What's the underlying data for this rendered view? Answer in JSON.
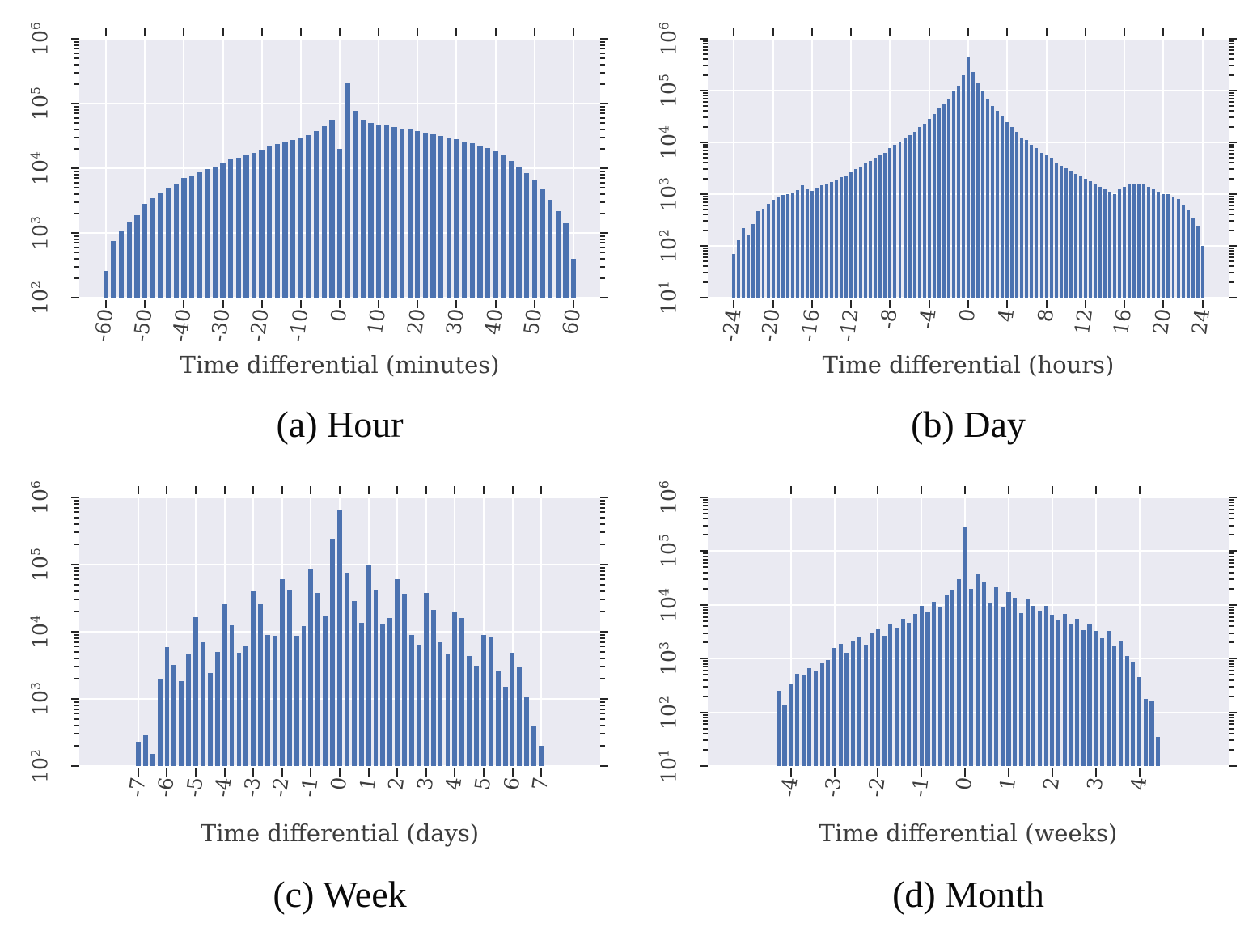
{
  "figure": {
    "background": "#ffffff",
    "bar_color": "#4C72B0",
    "plot_background": "#EAEAF2",
    "grid_color": "#ffffff",
    "tick_color": "#262626",
    "text_color": "#3d3d3d",
    "caption_color": "#0a0a0a"
  },
  "chart_data": [
    {
      "type": "bar",
      "id": "hour",
      "caption": "(a) Hour",
      "xlabel": "Time differential (minutes)",
      "y_scale": "log",
      "y_log_range": [
        2,
        6
      ],
      "x_start": -60,
      "x_step": 2,
      "xticks": [
        -60,
        -50,
        -40,
        -30,
        -20,
        -10,
        0,
        10,
        20,
        30,
        40,
        50,
        60
      ],
      "values": [
        260,
        750,
        1100,
        1500,
        1900,
        2800,
        3400,
        4200,
        4900,
        5700,
        7000,
        7800,
        8600,
        9700,
        10500,
        12300,
        13600,
        14600,
        15800,
        17500,
        19400,
        21500,
        23400,
        25000,
        27000,
        29500,
        33000,
        38000,
        45000,
        56000,
        20000,
        210000,
        78000,
        56000,
        50000,
        48000,
        45500,
        43500,
        41500,
        39500,
        37500,
        35500,
        33500,
        31500,
        29500,
        28000,
        26000,
        24500,
        22500,
        20500,
        18500,
        16000,
        13000,
        10500,
        8300,
        6500,
        4800,
        3300,
        2200,
        1400,
        400
      ]
    },
    {
      "type": "bar",
      "id": "day",
      "caption": "(b) Day",
      "xlabel": "Time differential (hours)",
      "y_scale": "log",
      "y_log_range": [
        1,
        6
      ],
      "x_start": -24,
      "x_step": 0.5,
      "xticks": [
        -24,
        -20,
        -16,
        -12,
        -8,
        -4,
        0,
        4,
        8,
        12,
        16,
        20,
        24
      ],
      "values": [
        70,
        130,
        220,
        165,
        260,
        470,
        530,
        650,
        780,
        860,
        950,
        1000,
        1050,
        1200,
        1480,
        1250,
        1150,
        1300,
        1500,
        1550,
        1700,
        1900,
        2100,
        2300,
        2600,
        3000,
        3400,
        3900,
        4400,
        5000,
        5600,
        6300,
        7900,
        8900,
        10000,
        12500,
        14000,
        16000,
        20000,
        22500,
        28000,
        35000,
        45000,
        56000,
        71000,
        100000,
        126000,
        200000,
        450000,
        225000,
        140000,
        100000,
        71000,
        50000,
        40000,
        32000,
        25000,
        20000,
        16000,
        12500,
        11000,
        9000,
        7900,
        6300,
        5600,
        5000,
        4000,
        3500,
        3200,
        2800,
        2500,
        2200,
        2000,
        1800,
        1600,
        1400,
        1250,
        1100,
        1000,
        1250,
        1400,
        1600,
        1600,
        1600,
        1600,
        1400,
        1250,
        1100,
        1000,
        1000,
        900,
        800,
        630,
        500,
        350,
        250,
        100
      ]
    },
    {
      "type": "bar",
      "id": "week",
      "caption": "(c) Week",
      "xlabel": "Time differential (days)",
      "y_scale": "log",
      "y_log_range": [
        2,
        6
      ],
      "x_start": -7,
      "x_step": 0.25,
      "xticks": [
        -7,
        -6,
        -5,
        -4,
        -3,
        -2,
        -1,
        0,
        1,
        2,
        3,
        4,
        5,
        6,
        7
      ],
      "values": [
        230,
        290,
        150,
        2000,
        5900,
        3200,
        1850,
        4600,
        16500,
        7000,
        2400,
        5000,
        25500,
        12500,
        4800,
        6300,
        40000,
        26000,
        9000,
        8800,
        60000,
        42000,
        8800,
        12000,
        85000,
        38000,
        17000,
        240000,
        660000,
        75000,
        29000,
        13500,
        100000,
        42000,
        13000,
        16000,
        60000,
        37000,
        9000,
        6500,
        38000,
        21000,
        7000,
        4700,
        20000,
        16000,
        4300,
        3100,
        9000,
        8500,
        2600,
        1500,
        4800,
        3000,
        1050,
        400,
        200
      ]
    },
    {
      "type": "bar",
      "id": "month",
      "caption": "(d) Month",
      "xlabel": "Time differential (weeks)",
      "y_scale": "log",
      "y_log_range": [
        1,
        6
      ],
      "x_start": -4.2857,
      "x_step": 0.142857,
      "xticks": [
        -4,
        -3,
        -2,
        -1,
        0,
        1,
        2,
        3,
        4
      ],
      "values": [
        250,
        140,
        330,
        520,
        480,
        660,
        590,
        820,
        950,
        1600,
        1900,
        1300,
        2100,
        2500,
        1800,
        2900,
        3600,
        2700,
        4400,
        3800,
        5500,
        4600,
        6800,
        9500,
        7200,
        11500,
        9000,
        15500,
        19000,
        30000,
        290000,
        20000,
        38000,
        26000,
        11000,
        21000,
        9000,
        17000,
        13500,
        7000,
        12500,
        9500,
        7800,
        9500,
        6500,
        5300,
        6800,
        4300,
        5500,
        3400,
        4400,
        3300,
        2400,
        3300,
        1700,
        2100,
        1100,
        850,
        450,
        175,
        165,
        35
      ]
    }
  ]
}
